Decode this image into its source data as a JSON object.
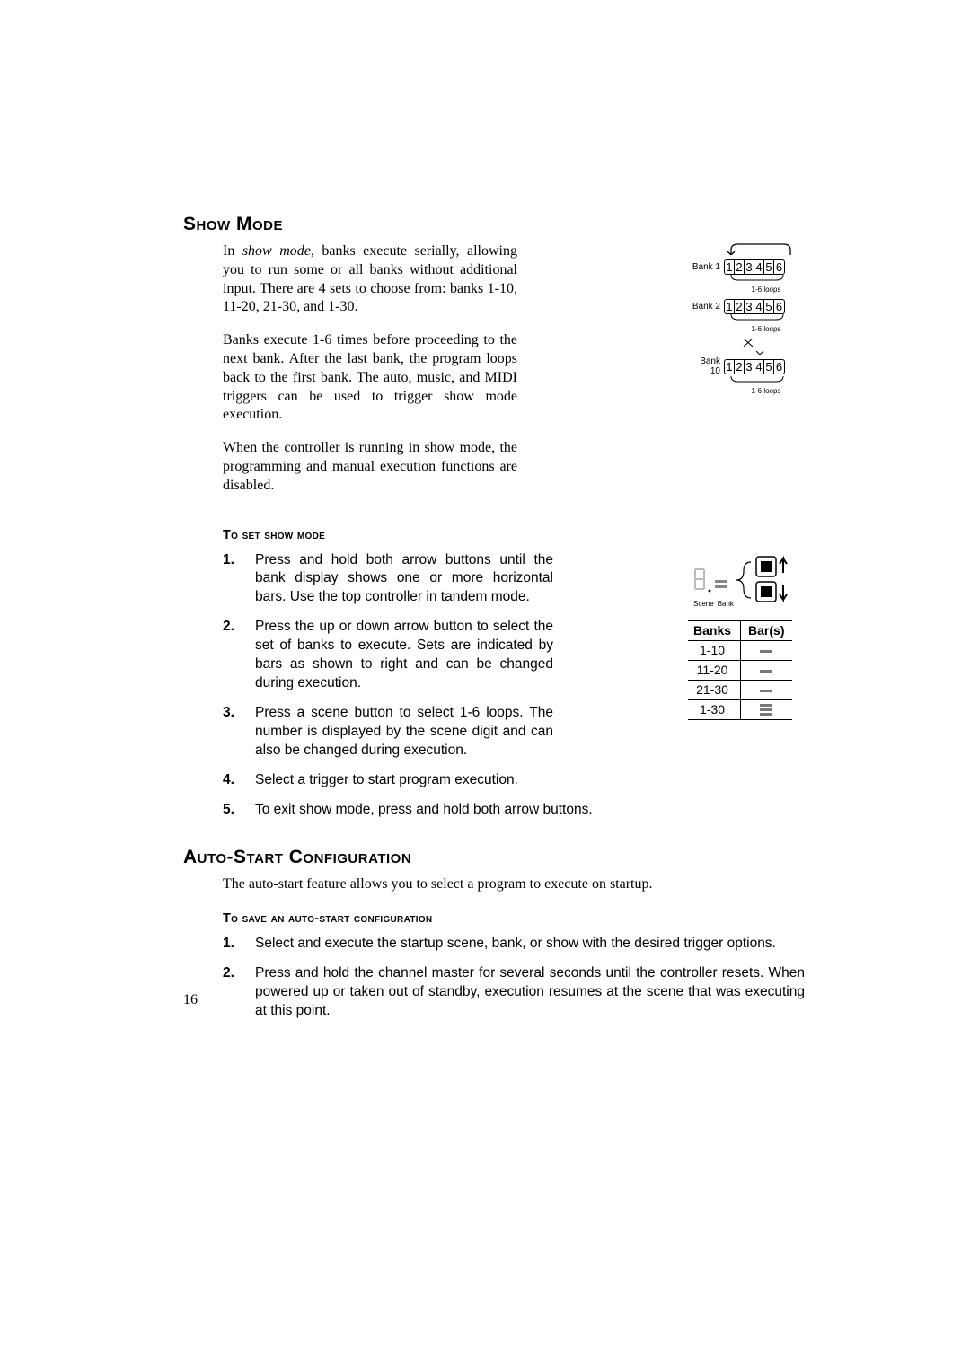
{
  "page_number": "16",
  "section1": {
    "heading": "Show Mode",
    "para1_pre": "In ",
    "para1_em": "show mode",
    "para1_post": ", banks execute serially, allowing you to run some or all banks without additional input. There are 4 sets to choose from: banks 1-10, 11-20, 21-30, and 1-30.",
    "para2": "Banks execute 1-6 times before proceeding to the next bank. After the last bank, the program loops back to the first bank. The auto, music, and MIDI triggers can be used to trigger show mode execution.",
    "para3": "When the controller is running in show mode, the programming and manual execution functions are disabled.",
    "sub1": "To set show mode",
    "steps": [
      "Press and hold both arrow buttons until the bank display shows one or more horizontal bars. Use the top controller in tandem mode.",
      "Press the up or down arrow button to select the set of banks to execute. Sets are indicated by bars as shown to right and can be changed during execution.",
      "Press a scene button to select 1-6 loops. The number is displayed by the scene digit and can also be changed during execution.",
      "Select a trigger to start program execution.",
      "To exit show mode, press and hold both arrow buttons."
    ]
  },
  "section2": {
    "heading": "Auto-Start Configuration",
    "para1": "The auto-start feature allows you to select a program to execute on startup.",
    "sub1": "To save an auto-start configuration",
    "steps": [
      "Select and execute the startup scene, bank, or show with the desired trigger options.",
      "Press and hold the channel master for several seconds until the controller resets. When powered up or taken out of standby, execution resumes at the scene that was executing at this point."
    ]
  },
  "bank_diagram": {
    "banks": [
      "Bank 1",
      "Bank 2",
      "Bank 10"
    ],
    "digits": [
      "1",
      "2",
      "3",
      "4",
      "5",
      "6"
    ],
    "loop_label": "1-6 loops"
  },
  "button_diagram": {
    "scene_label": "Scene",
    "bank_label": "Bank"
  },
  "bars_table": {
    "col1": "Banks",
    "col2": "Bar(s)",
    "rows": [
      {
        "range": "1-10",
        "bars": [
          1
        ]
      },
      {
        "range": "11-20",
        "bars": [
          1
        ]
      },
      {
        "range": "21-30",
        "bars": [
          1
        ]
      },
      {
        "range": "1-30",
        "bars": [
          1,
          1,
          1
        ]
      }
    ]
  },
  "colors": {
    "bar": "#777777"
  }
}
